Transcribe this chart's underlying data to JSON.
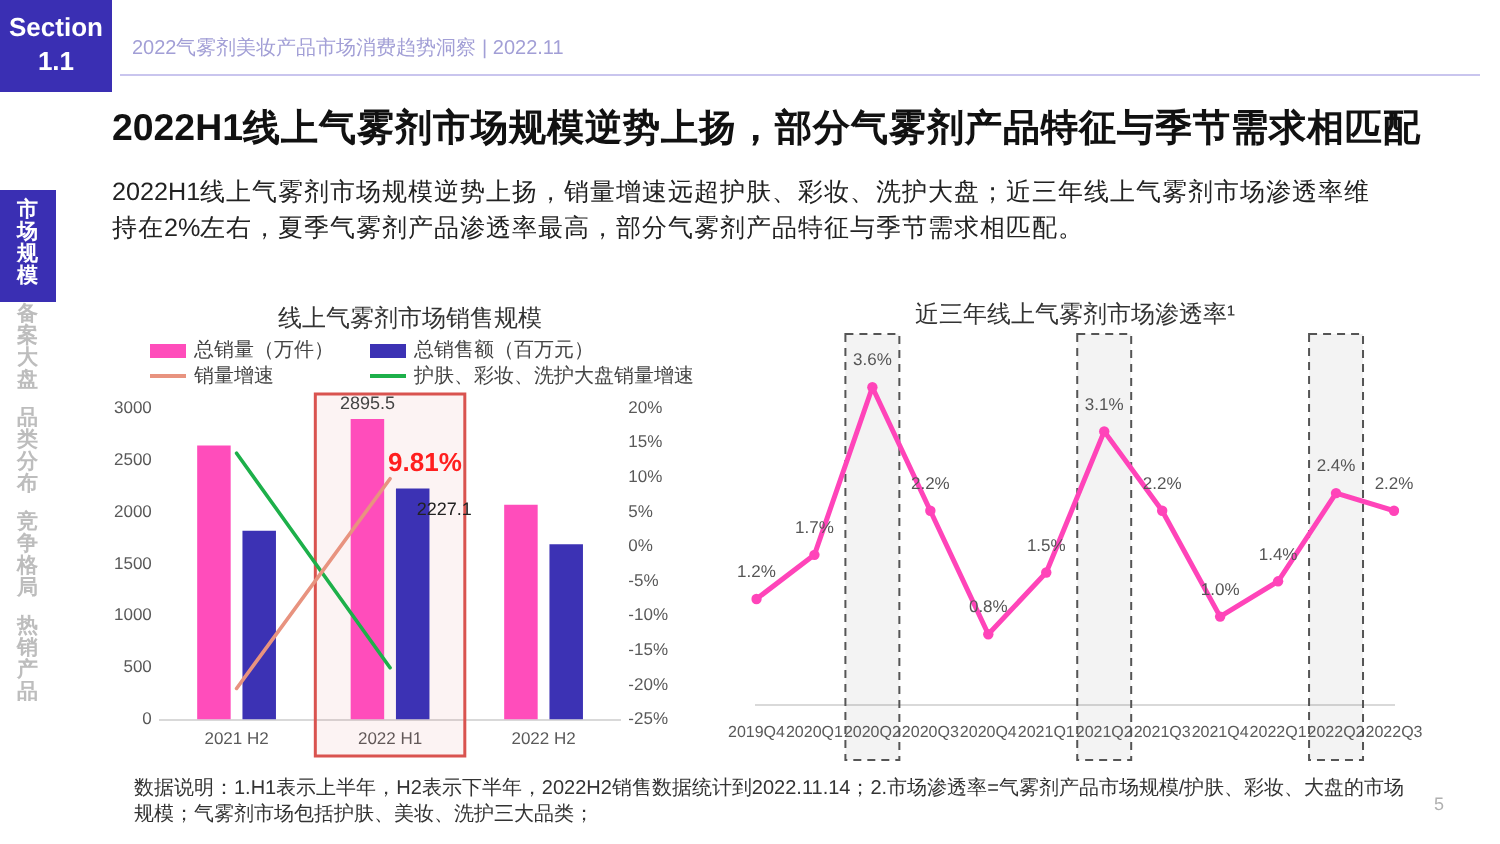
{
  "chart_data": [
    {
      "type": "other",
      "title": "2022H1线上气雾剂市场规模逆势上扬，部分气雾剂产品特征与季节需求相匹配",
      "subtitle": "2022H1线上气雾剂市场规模逆势上扬，销量增速远超护肤、彩妆、洗护大盘；近三年线上气雾剂市场渗透率维持在2%左右，夏季气雾剂产品渗透率最高，部分气雾剂产品特征与季节需求相匹配。",
      "annotations": [
        "Section 1.1",
        "2022气雾剂美妆产品市场消费趋势洞察 | 2022.11",
        "市场规模",
        "备案大盘",
        "品类分布",
        "竞争格局",
        "热销产品",
        "数据说明：1.H1表示上半年，H2表示下半年，2022H2销售数据统计到2022.11.14；2.市场渗透率=气雾剂产品市场规模/护肤、彩妆、大盘的市场规模；气雾剂市场包括护肤、美妆、洗护三大品类；",
        "5"
      ]
    },
    {
      "type": "bar",
      "title": "线上气雾剂市场销售规模",
      "categories": [
        "2021 H2",
        "2022 H1",
        "2022 H2"
      ],
      "series": [
        {
          "name": "总销量（万件）",
          "color": "#ff4dbb",
          "values": [
            2640,
            2895.5,
            2070
          ],
          "value_labels": [
            null,
            "2895.5",
            null
          ]
        },
        {
          "name": "总销售额（百万元）",
          "color": "#3c32b4",
          "values": [
            1820,
            2227.1,
            1690
          ],
          "value_labels": [
            null,
            "2227.1",
            null
          ]
        },
        {
          "name": "销量增速",
          "type": "line",
          "axis": "y2",
          "color": "#e8937f",
          "values": [
            -20.5,
            9.81,
            null
          ],
          "value_labels": [
            null,
            "9.81%",
            null
          ]
        },
        {
          "name": "护肤、彩妆、洗护大盘销量增速",
          "type": "line",
          "axis": "y2",
          "color": "#1db04a",
          "values": [
            13.5,
            -17.5,
            null
          ]
        }
      ],
      "ylim": [
        0,
        3000
      ],
      "yticks": [
        0,
        500,
        1000,
        1500,
        2000,
        2500,
        3000
      ],
      "y2lim": [
        -25,
        20
      ],
      "y2ticks": [
        {
          "value": -25,
          "label": "-25%"
        },
        {
          "value": -20,
          "label": "-20%"
        },
        {
          "value": -15,
          "label": "-15%"
        },
        {
          "value": -10,
          "label": "-10%"
        },
        {
          "value": -5,
          "label": "-5%"
        },
        {
          "value": 0,
          "label": "0%"
        },
        {
          "value": 5,
          "label": "5%"
        },
        {
          "value": 10,
          "label": "10%"
        },
        {
          "value": 15,
          "label": "15%"
        },
        {
          "value": 20,
          "label": "20%"
        }
      ],
      "legend": "top",
      "marker": "none",
      "bands": [
        {
          "axis": "x",
          "from": "2022 H1",
          "to": "2022 H1",
          "color": "#d9534f"
        }
      ]
    },
    {
      "type": "line",
      "title": "近三年线上气雾剂市场渗透率¹",
      "categories": [
        "2019Q4",
        "2020Q1",
        "2020Q2",
        "2020Q3",
        "2020Q4",
        "2021Q1",
        "2021Q2",
        "2021Q3",
        "2021Q4",
        "2022Q1",
        "2022Q2",
        "2022Q3"
      ],
      "series": [
        {
          "color": "#ff44b9",
          "values": [
            1.2,
            1.7,
            3.6,
            2.2,
            0.8,
            1.5,
            3.1,
            2.2,
            1.0,
            1.4,
            2.4,
            2.2
          ],
          "value_labels": [
            "1.2%",
            "1.7%",
            "3.6%",
            "2.2%",
            "0.8%",
            "1.5%",
            "3.1%",
            "2.2%",
            "1.0%",
            "1.4%",
            "2.4%",
            "2.2%"
          ]
        }
      ],
      "tick_labels": "x",
      "marker": "circle",
      "bands": [
        {
          "axis": "x",
          "from": "2020Q2",
          "to": "2020Q2",
          "color": "#555555"
        },
        {
          "axis": "x",
          "from": "2021Q2",
          "to": "2021Q2",
          "color": "#555555"
        },
        {
          "axis": "x",
          "from": "2022Q2",
          "to": "2022Q2",
          "color": "#555555"
        }
      ]
    }
  ]
}
